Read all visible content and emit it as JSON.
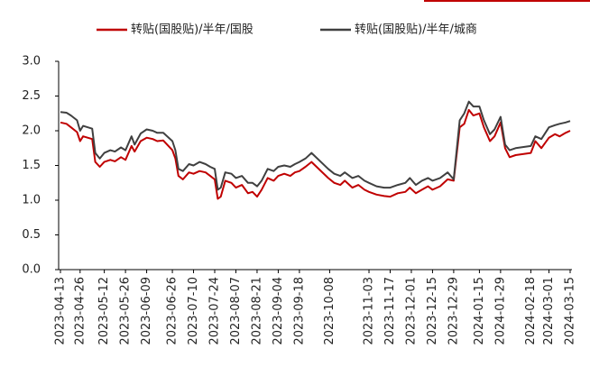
{
  "chart_data": {
    "type": "line",
    "x": [
      "2023-04-13",
      "2023-04-17",
      "2023-04-20",
      "2023-04-24",
      "2023-04-26",
      "2023-04-28",
      "2023-05-04",
      "2023-05-06",
      "2023-05-09",
      "2023-05-12",
      "2023-05-16",
      "2023-05-19",
      "2023-05-23",
      "2023-05-26",
      "2023-05-30",
      "2023-06-01",
      "2023-06-05",
      "2023-06-09",
      "2023-06-13",
      "2023-06-16",
      "2023-06-20",
      "2023-06-26",
      "2023-06-28",
      "2023-06-30",
      "2023-07-03",
      "2023-07-07",
      "2023-07-10",
      "2023-07-14",
      "2023-07-18",
      "2023-07-21",
      "2023-07-24",
      "2023-07-26",
      "2023-07-28",
      "2023-07-31",
      "2023-08-04",
      "2023-08-07",
      "2023-08-11",
      "2023-08-15",
      "2023-08-18",
      "2023-08-21",
      "2023-08-24",
      "2023-08-28",
      "2023-09-01",
      "2023-09-04",
      "2023-09-08",
      "2023-09-12",
      "2023-09-15",
      "2023-09-18",
      "2023-09-22",
      "2023-09-26",
      "2023-10-07",
      "2023-10-11",
      "2023-10-15",
      "2023-10-18",
      "2023-10-23",
      "2023-10-27",
      "2023-10-31",
      "2023-11-03",
      "2023-11-08",
      "2023-11-13",
      "2023-11-17",
      "2023-11-22",
      "2023-11-27",
      "2023-11-30",
      "2023-12-04",
      "2023-12-08",
      "2023-12-12",
      "2023-12-15",
      "2023-12-20",
      "2023-12-25",
      "2023-12-29",
      "2024-01-02",
      "2024-01-05",
      "2024-01-08",
      "2024-01-11",
      "2024-01-15",
      "2024-01-18",
      "2024-01-22",
      "2024-01-25",
      "2024-01-29",
      "2024-02-01",
      "2024-02-04",
      "2024-02-08",
      "2024-02-18",
      "2024-02-21",
      "2024-02-25",
      "2024-03-01",
      "2024-03-05",
      "2024-03-08",
      "2024-03-12",
      "2024-03-15"
    ],
    "series": [
      {
        "name": "转贴(国股贴)/半年/国股",
        "color": "#c00000",
        "values": [
          2.12,
          2.1,
          2.05,
          1.98,
          1.85,
          1.92,
          1.88,
          1.55,
          1.48,
          1.55,
          1.58,
          1.56,
          1.62,
          1.58,
          1.78,
          1.7,
          1.85,
          1.9,
          1.88,
          1.85,
          1.86,
          1.72,
          1.6,
          1.35,
          1.3,
          1.4,
          1.38,
          1.42,
          1.4,
          1.35,
          1.3,
          1.02,
          1.05,
          1.28,
          1.25,
          1.18,
          1.22,
          1.1,
          1.12,
          1.05,
          1.15,
          1.32,
          1.28,
          1.35,
          1.38,
          1.35,
          1.4,
          1.42,
          1.48,
          1.55,
          1.32,
          1.25,
          1.22,
          1.28,
          1.18,
          1.22,
          1.15,
          1.12,
          1.08,
          1.06,
          1.05,
          1.1,
          1.12,
          1.18,
          1.1,
          1.15,
          1.2,
          1.15,
          1.2,
          1.3,
          1.28,
          2.05,
          2.1,
          2.3,
          2.22,
          2.25,
          2.05,
          1.85,
          1.92,
          2.12,
          1.75,
          1.62,
          1.65,
          1.68,
          1.85,
          1.75,
          1.9,
          1.95,
          1.92,
          1.97,
          2.0
        ]
      },
      {
        "name": "转贴(国股贴)/半年/城商",
        "color": "#404040",
        "values": [
          2.27,
          2.26,
          2.22,
          2.15,
          2.0,
          2.07,
          2.03,
          1.68,
          1.6,
          1.68,
          1.72,
          1.7,
          1.76,
          1.72,
          1.92,
          1.8,
          1.96,
          2.02,
          2.0,
          1.97,
          1.97,
          1.85,
          1.72,
          1.45,
          1.42,
          1.52,
          1.5,
          1.55,
          1.52,
          1.48,
          1.45,
          1.15,
          1.18,
          1.4,
          1.38,
          1.32,
          1.35,
          1.25,
          1.25,
          1.2,
          1.28,
          1.45,
          1.42,
          1.48,
          1.5,
          1.48,
          1.52,
          1.55,
          1.6,
          1.68,
          1.45,
          1.38,
          1.35,
          1.4,
          1.32,
          1.35,
          1.28,
          1.25,
          1.2,
          1.18,
          1.18,
          1.22,
          1.25,
          1.32,
          1.22,
          1.28,
          1.32,
          1.28,
          1.32,
          1.4,
          1.3,
          2.15,
          2.25,
          2.42,
          2.35,
          2.35,
          2.15,
          1.95,
          2.02,
          2.2,
          1.8,
          1.72,
          1.75,
          1.78,
          1.92,
          1.88,
          2.05,
          2.08,
          2.1,
          2.12,
          2.14
        ]
      }
    ],
    "xlim": [
      "2023-04-13",
      "2024-03-15"
    ],
    "xticks": [
      "2023-04-13",
      "2023-04-26",
      "2023-05-12",
      "2023-05-26",
      "2023-06-09",
      "2023-06-26",
      "2023-07-10",
      "2023-07-24",
      "2023-08-07",
      "2023-08-21",
      "2023-09-04",
      "2023-09-18",
      "2023-10-08",
      "2023-11-03",
      "2023-11-17",
      "2023-12-01",
      "2023-12-15",
      "2023-12-29",
      "2024-01-15",
      "2024-01-29",
      "2024-02-18",
      "2024-03-01",
      "2024-03-15"
    ],
    "ylim": [
      0,
      3
    ],
    "yticks": [
      {
        "value": 0,
        "label": "0.0"
      },
      {
        "value": 0.5,
        "label": "0.5"
      },
      {
        "value": 1,
        "label": "1.0"
      },
      {
        "value": 1.5,
        "label": "1.5"
      },
      {
        "value": 2,
        "label": "2.0"
      },
      {
        "value": 2.5,
        "label": "2.5"
      },
      {
        "value": 3,
        "label": "3.0"
      }
    ],
    "legend": "top"
  }
}
